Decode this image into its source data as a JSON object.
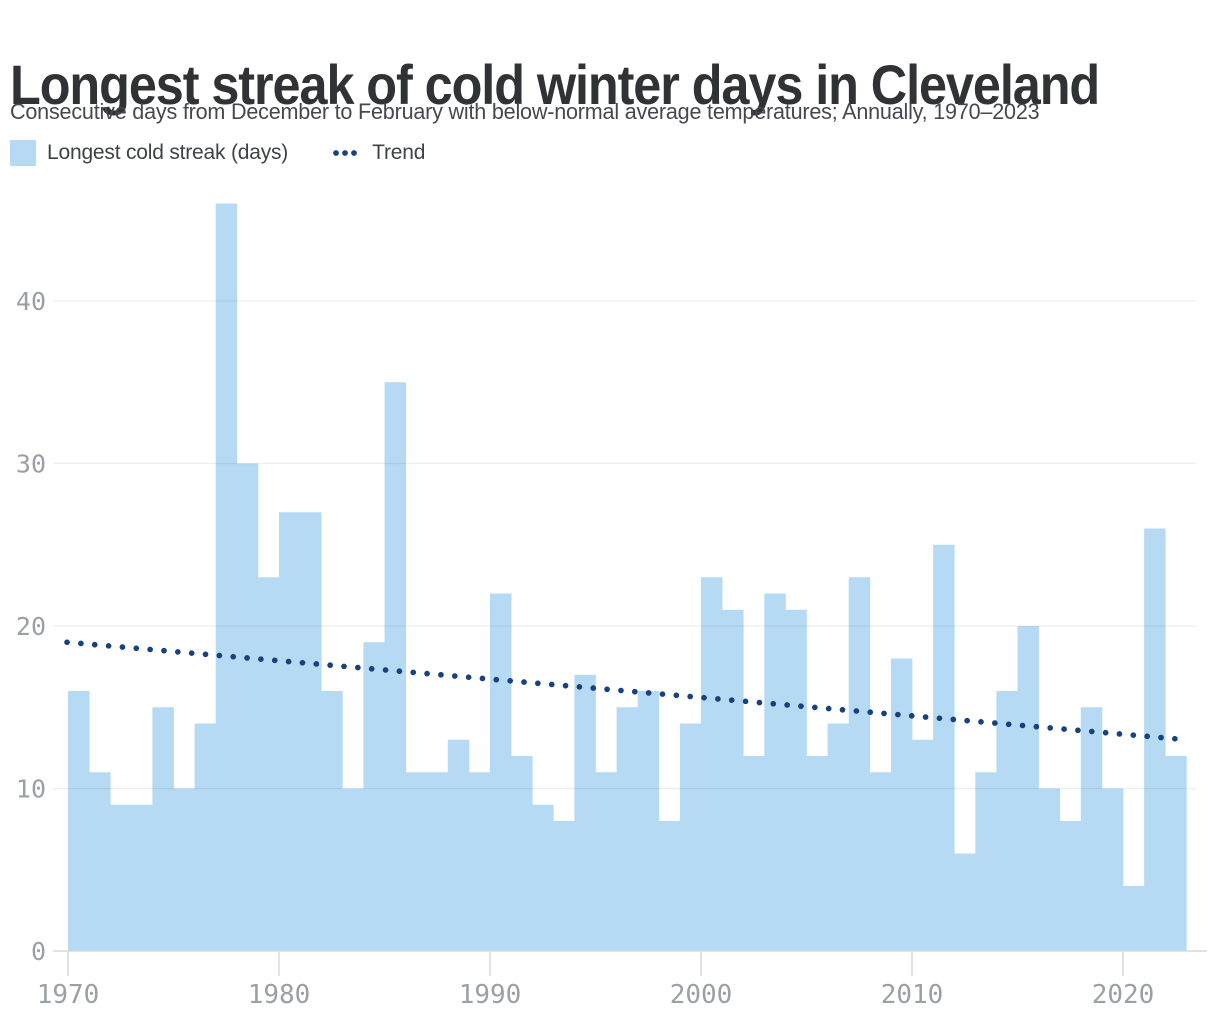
{
  "header": {
    "title": "Longest streak of cold winter days in Cleveland",
    "subtitle": "Consecutive days from December to February with below-normal average temperatures; Annually, 1970–2023"
  },
  "legend": {
    "bar_label": "Longest cold streak (days)",
    "trend_label": "Trend"
  },
  "chart_data": {
    "type": "bar",
    "title": "Longest streak of cold winter days in Cleveland",
    "xlabel": "",
    "ylabel": "Longest cold streak (days)",
    "grid": true,
    "legend_position": "top-left",
    "ylim": [
      0,
      46.5
    ],
    "xlim": [
      1970,
      2023.5
    ],
    "yticks": [
      0,
      10,
      20,
      30,
      40
    ],
    "xticks": [
      1970,
      1980,
      1990,
      2000,
      2010,
      2020
    ],
    "categories": [
      1970,
      1971,
      1972,
      1973,
      1974,
      1975,
      1976,
      1977,
      1978,
      1979,
      1980,
      1981,
      1982,
      1983,
      1984,
      1985,
      1986,
      1987,
      1988,
      1989,
      1990,
      1991,
      1992,
      1993,
      1994,
      1995,
      1996,
      1997,
      1998,
      1999,
      2000,
      2001,
      2002,
      2003,
      2004,
      2005,
      2006,
      2007,
      2008,
      2009,
      2010,
      2011,
      2012,
      2013,
      2014,
      2015,
      2016,
      2017,
      2018,
      2019,
      2020,
      2021,
      2022
    ],
    "values": [
      16,
      11,
      9,
      9,
      15,
      10,
      14,
      46,
      30,
      23,
      27,
      27,
      16,
      10,
      19,
      35,
      11,
      11,
      13,
      11,
      22,
      12,
      9,
      8,
      17,
      11,
      15,
      16,
      8,
      14,
      23,
      21,
      12,
      22,
      21,
      12,
      14,
      23,
      11,
      18,
      13,
      25,
      6,
      11,
      16,
      20,
      10,
      8,
      15,
      10,
      4,
      26,
      12
    ],
    "trend": {
      "label": "Trend",
      "style": "dotted",
      "start_year": 1970,
      "start_value": 19.0,
      "end_year": 2023,
      "end_value": 13.0
    }
  },
  "colors": {
    "bar": "#b7daf4",
    "trend": "#17417f",
    "grid": "rgba(25,35,45,0.08)",
    "baseline": "#d6d8da",
    "axis_label": "#9aa0a6",
    "title": "#303236",
    "subtitle": "#45494e",
    "legend_text": "#3f4246"
  }
}
